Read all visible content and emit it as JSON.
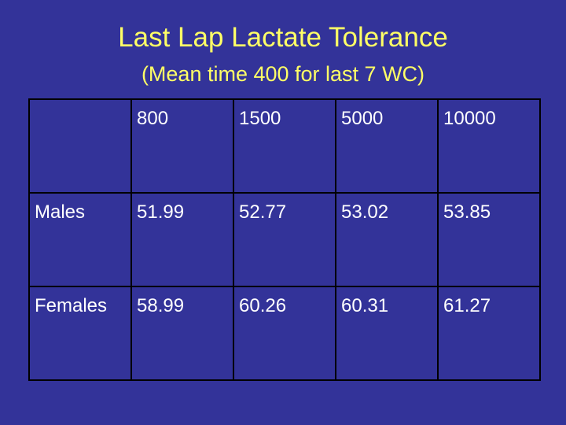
{
  "slide": {
    "title": "Last Lap Lactate Tolerance",
    "subtitle": "(Mean time 400 for last 7 WC)"
  },
  "table": {
    "header": [
      "",
      "800",
      "1500",
      "5000",
      "10000"
    ],
    "rows": [
      {
        "label": "Males",
        "values": [
          "51.99",
          "52.77",
          "53.02",
          "53.85"
        ]
      },
      {
        "label": "Females",
        "values": [
          "58.99",
          "60.26",
          "60.31",
          "61.27"
        ]
      }
    ]
  },
  "colors": {
    "background": "#333399",
    "title": "#ffff66",
    "text": "#ffffff",
    "grid": "#000000"
  }
}
